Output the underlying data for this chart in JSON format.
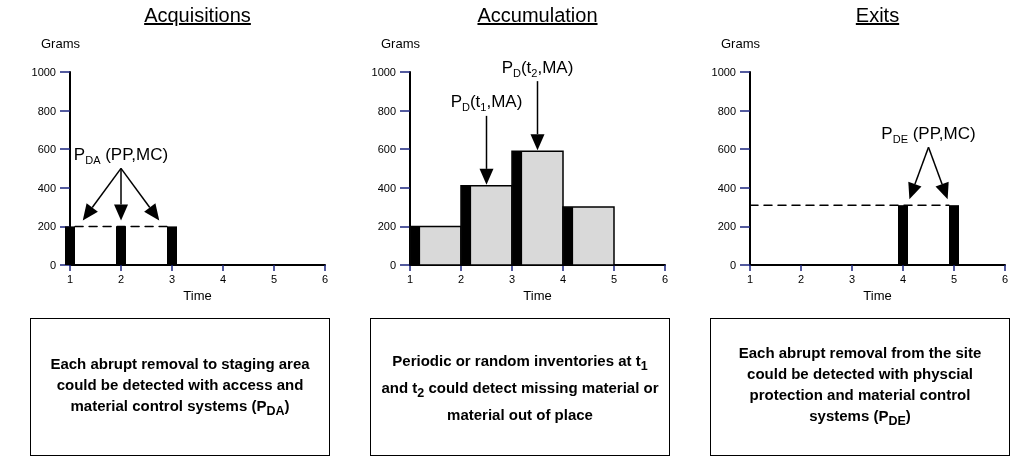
{
  "chart_data": [
    {
      "type": "bar",
      "title": "Acquisitions",
      "xlabel": "Time",
      "ylabel": "Grams",
      "xlim": [
        1,
        6
      ],
      "xticks": [
        1,
        2,
        3,
        4,
        5,
        6
      ],
      "ylim": [
        0,
        1000
      ],
      "yticks": [
        0,
        200,
        400,
        600,
        800,
        1000
      ],
      "grid": false,
      "series": [
        {
          "color": "#000000",
          "x": [
            1,
            2,
            3
          ],
          "values": [
            200,
            200,
            200
          ]
        },
        {
          "type": "line",
          "color": "#000000",
          "line_style": "dashed",
          "marker": "none",
          "x": [
            1.1,
            2.9
          ],
          "values": [
            200,
            200
          ]
        }
      ],
      "annotations": [
        "P$_{DA}$ (PP,MC)",
        "Each abrupt removal to staging area could be detected with access and material control systems (P$_{DA}$)"
      ]
    },
    {
      "type": "bar",
      "title": "Accumulation",
      "xlabel": "Time",
      "ylabel": "Grams",
      "xlim": [
        1,
        6
      ],
      "xticks": [
        1,
        2,
        3,
        4,
        5,
        6
      ],
      "ylim": [
        0,
        1000
      ],
      "yticks": [
        0,
        200,
        400,
        600,
        800,
        1000
      ],
      "grid": false,
      "series": [
        {
          "type": "histogram",
          "color": "#d9d9d9",
          "bins": [
            1,
            2,
            3,
            4,
            5
          ],
          "values": [
            200,
            410,
            590,
            300
          ]
        },
        {
          "color": "#000000",
          "x": [
            1.1,
            2.1,
            3.1,
            4.1
          ],
          "values": [
            200,
            410,
            590,
            300
          ]
        }
      ],
      "annotations": [
        "P$_{D}$(t$_{1}$,MA)",
        "P$_{D}$(t$_{2}$,MA)",
        "Periodic or random inventories at t$_{1}$ and t$_{2}$ could detect missing material or material out of place"
      ]
    },
    {
      "type": "bar",
      "title": "Exits",
      "xlabel": "Time",
      "ylabel": "Grams",
      "xlim": [
        1,
        6
      ],
      "xticks": [
        1,
        2,
        3,
        4,
        5,
        6
      ],
      "ylim": [
        0,
        1000
      ],
      "yticks": [
        0,
        200,
        400,
        600,
        800,
        1000
      ],
      "grid": false,
      "series": [
        {
          "color": "#000000",
          "x": [
            4,
            5
          ],
          "values": [
            310,
            310
          ]
        },
        {
          "type": "line",
          "color": "#000000",
          "line_style": "dashed",
          "marker": "none",
          "x": [
            1,
            4.9
          ],
          "values": [
            310,
            310
          ]
        }
      ],
      "annotations": [
        "P$_{DE}$ (PP,MC)",
        "Each abrupt removal from the site could be detected with physcial protection and material control systems (P$_{DE}$)"
      ]
    }
  ]
}
